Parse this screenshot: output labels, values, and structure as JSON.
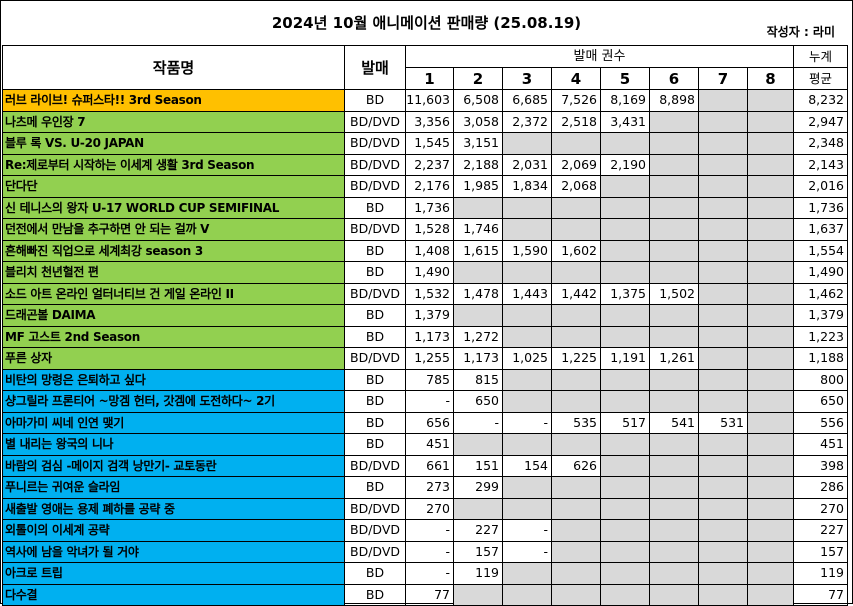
{
  "title": "2024년 10월 애니메이션 판매량 (25.08.19)",
  "author": "작성자 : 라미",
  "headers": {
    "work": "작품명",
    "release": "발매",
    "volumes": "발매 권수",
    "average_line1": "누계",
    "average_line2": "평균",
    "vol_numbers": [
      "1",
      "2",
      "3",
      "4",
      "5",
      "6",
      "7",
      "8"
    ]
  },
  "rows": [
    {
      "title": "러브 라이브! 슈퍼스타!! 3rd Season",
      "color": "orange",
      "format": "BD",
      "v": [
        "11,603",
        "6,508",
        "6,685",
        "7,526",
        "8,169",
        "8,898",
        null,
        null
      ],
      "avg": "8,232"
    },
    {
      "title": "나츠메 우인장 7",
      "color": "green",
      "format": "BD/DVD",
      "v": [
        "3,356",
        "3,058",
        "2,372",
        "2,518",
        "3,431",
        null,
        null,
        null
      ],
      "avg": "2,947"
    },
    {
      "title": "블루 록 VS. U-20 JAPAN",
      "color": "green",
      "format": "BD/DVD",
      "v": [
        "1,545",
        "3,151",
        null,
        null,
        null,
        null,
        null,
        null
      ],
      "avg": "2,348"
    },
    {
      "title": "Re:제로부터 시작하는 이세계 생활 3rd Season",
      "color": "green",
      "format": "BD/DVD",
      "v": [
        "2,237",
        "2,188",
        "2,031",
        "2,069",
        "2,190",
        null,
        null,
        null
      ],
      "avg": "2,143"
    },
    {
      "title": "단다단",
      "color": "green",
      "format": "BD/DVD",
      "v": [
        "2,176",
        "1,985",
        "1,834",
        "2,068",
        null,
        null,
        null,
        null
      ],
      "avg": "2,016"
    },
    {
      "title": "신 테니스의 왕자 U-17 WORLD CUP SEMIFINAL",
      "color": "green",
      "format": "BD",
      "v": [
        "1,736",
        null,
        null,
        null,
        null,
        null,
        null,
        null
      ],
      "avg": "1,736"
    },
    {
      "title": "던전에서 만남을 추구하면 안 되는 걸까 V",
      "color": "green",
      "format": "BD/DVD",
      "v": [
        "1,528",
        "1,746",
        null,
        null,
        null,
        null,
        null,
        null
      ],
      "avg": "1,637"
    },
    {
      "title": "흔해빠진 직업으로 세계최강 season 3",
      "color": "green",
      "format": "BD",
      "v": [
        "1,408",
        "1,615",
        "1,590",
        "1,602",
        null,
        null,
        null,
        null
      ],
      "avg": "1,554"
    },
    {
      "title": "블리치 천년혈전 편",
      "color": "green",
      "format": "BD",
      "v": [
        "1,490",
        null,
        null,
        null,
        null,
        null,
        null,
        null
      ],
      "avg": "1,490"
    },
    {
      "title": "소드 아트 온라인 얼터너티브 건 게일 온라인 II",
      "color": "green",
      "format": "BD/DVD",
      "v": [
        "1,532",
        "1,478",
        "1,443",
        "1,442",
        "1,375",
        "1,502",
        null,
        null
      ],
      "avg": "1,462"
    },
    {
      "title": "드래곤볼 DAIMA",
      "color": "green",
      "format": "BD",
      "v": [
        "1,379",
        null,
        null,
        null,
        null,
        null,
        null,
        null
      ],
      "avg": "1,379"
    },
    {
      "title": "MF 고스트 2nd Season",
      "color": "green",
      "format": "BD",
      "v": [
        "1,173",
        "1,272",
        null,
        null,
        null,
        null,
        null,
        null
      ],
      "avg": "1,223"
    },
    {
      "title": "푸른 상자",
      "color": "green",
      "format": "BD/DVD",
      "v": [
        "1,255",
        "1,173",
        "1,025",
        "1,225",
        "1,191",
        "1,261",
        null,
        null
      ],
      "avg": "1,188"
    },
    {
      "title": "비탄의 망령은 은퇴하고 싶다",
      "color": "blue",
      "format": "BD",
      "v": [
        "785",
        "815",
        null,
        null,
        null,
        null,
        null,
        null
      ],
      "avg": "800"
    },
    {
      "title": "샹그릴라 프론티어 ~망겜 헌터, 갓겜에 도전하다~ 2기",
      "color": "blue",
      "format": "BD",
      "v": [
        "-",
        "650",
        null,
        null,
        null,
        null,
        null,
        null
      ],
      "avg": "650"
    },
    {
      "title": "아마가미 씨네 인연 맺기",
      "color": "blue",
      "format": "BD",
      "v": [
        "656",
        "-",
        "-",
        "535",
        "517",
        "541",
        "531",
        null
      ],
      "avg": "556"
    },
    {
      "title": "별 내리는 왕국의 니나",
      "color": "blue",
      "format": "BD",
      "v": [
        "451",
        null,
        null,
        null,
        null,
        null,
        null,
        null
      ],
      "avg": "451"
    },
    {
      "title": "바람의 검심 -메이지 검객 낭만기- 교토동란",
      "color": "blue",
      "format": "BD/DVD",
      "v": [
        "661",
        "151",
        "154",
        "626",
        null,
        null,
        null,
        null
      ],
      "avg": "398"
    },
    {
      "title": "푸니르는 귀여운 슬라임",
      "color": "blue",
      "format": "BD",
      "v": [
        "273",
        "299",
        null,
        null,
        null,
        null,
        null,
        null
      ],
      "avg": "286"
    },
    {
      "title": "새출발 영애는 용제 폐하를 공략 중",
      "color": "blue",
      "format": "BD/DVD",
      "v": [
        "270",
        null,
        null,
        null,
        null,
        null,
        null,
        null
      ],
      "avg": "270"
    },
    {
      "title": "외톨이의 이세계 공략",
      "color": "blue",
      "format": "BD/DVD",
      "v": [
        "-",
        "227",
        "-",
        null,
        null,
        null,
        null,
        null
      ],
      "avg": "227"
    },
    {
      "title": "역사에 남을 악녀가 될 거야",
      "color": "blue",
      "format": "BD/DVD",
      "v": [
        "-",
        "157",
        "-",
        null,
        null,
        null,
        null,
        null
      ],
      "avg": "157"
    },
    {
      "title": "아크로 트립",
      "color": "blue",
      "format": "BD",
      "v": [
        "-",
        "119",
        null,
        null,
        null,
        null,
        null,
        null
      ],
      "avg": "119"
    },
    {
      "title": "다수결",
      "color": "blue",
      "format": "BD",
      "v": [
        "77",
        null,
        null,
        null,
        null,
        null,
        null,
        null
      ],
      "avg": "77"
    }
  ],
  "colors": {
    "orange": "#ffc000",
    "green": "#92d050",
    "blue": "#00b0f0",
    "empty": "#d9d9d9"
  }
}
